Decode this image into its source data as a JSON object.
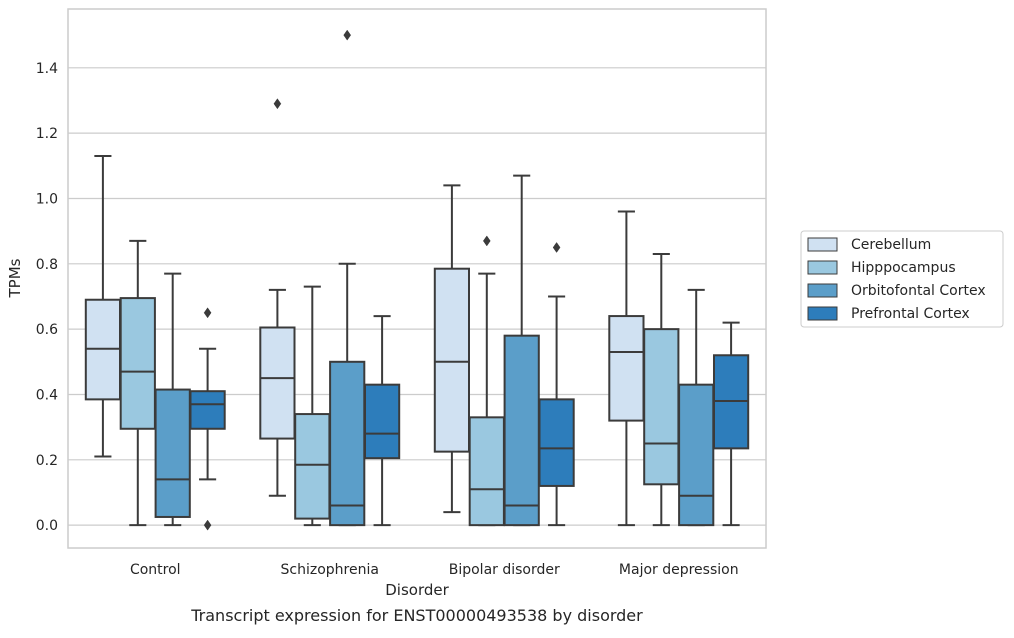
{
  "chart_data": {
    "type": "box",
    "caption": "Transcript expression for ENST00000493538 by disorder",
    "xlabel": "Disorder",
    "ylabel": "TPMs",
    "ylim": [
      -0.07,
      1.58
    ],
    "yticks": [
      0.0,
      0.2,
      0.4,
      0.6,
      0.8,
      1.0,
      1.2,
      1.4
    ],
    "ytick_labels": [
      "0.0",
      "0.2",
      "0.4",
      "0.6",
      "0.8",
      "1.0",
      "1.2",
      "1.4"
    ],
    "grid": true,
    "legend_position": "right",
    "categories": [
      "Control",
      "Schizophrenia",
      "Bipolar disorder",
      "Major depression"
    ],
    "series": [
      {
        "name": "Cerebellum",
        "color": "#d0e1f2",
        "boxes": [
          {
            "whisker_low": 0.21,
            "q1": 0.385,
            "median": 0.54,
            "q3": 0.69,
            "whisker_high": 1.13,
            "outliers": []
          },
          {
            "whisker_low": 0.09,
            "q1": 0.265,
            "median": 0.45,
            "q3": 0.605,
            "whisker_high": 0.72,
            "outliers": [
              1.29
            ]
          },
          {
            "whisker_low": 0.04,
            "q1": 0.225,
            "median": 0.5,
            "q3": 0.785,
            "whisker_high": 1.04,
            "outliers": []
          },
          {
            "whisker_low": 0.0,
            "q1": 0.32,
            "median": 0.53,
            "q3": 0.64,
            "whisker_high": 0.96,
            "outliers": []
          }
        ]
      },
      {
        "name": "Hipppocampus",
        "color": "#9ac8e0",
        "boxes": [
          {
            "whisker_low": 0.0,
            "q1": 0.295,
            "median": 0.47,
            "q3": 0.695,
            "whisker_high": 0.87,
            "outliers": []
          },
          {
            "whisker_low": 0.0,
            "q1": 0.02,
            "median": 0.185,
            "q3": 0.34,
            "whisker_high": 0.73,
            "outliers": []
          },
          {
            "whisker_low": 0.0,
            "q1": 0.0,
            "median": 0.11,
            "q3": 0.33,
            "whisker_high": 0.77,
            "outliers": [
              0.87
            ]
          },
          {
            "whisker_low": 0.0,
            "q1": 0.125,
            "median": 0.25,
            "q3": 0.6,
            "whisker_high": 0.83,
            "outliers": []
          }
        ]
      },
      {
        "name": "Orbitofontal Cortex",
        "color": "#5b9ec9",
        "boxes": [
          {
            "whisker_low": 0.0,
            "q1": 0.025,
            "median": 0.14,
            "q3": 0.415,
            "whisker_high": 0.77,
            "outliers": []
          },
          {
            "whisker_low": 0.0,
            "q1": 0.0,
            "median": 0.06,
            "q3": 0.5,
            "whisker_high": 0.8,
            "outliers": [
              1.5
            ]
          },
          {
            "whisker_low": 0.0,
            "q1": 0.0,
            "median": 0.06,
            "q3": 0.58,
            "whisker_high": 1.07,
            "outliers": []
          },
          {
            "whisker_low": 0.0,
            "q1": 0.0,
            "median": 0.09,
            "q3": 0.43,
            "whisker_high": 0.72,
            "outliers": []
          }
        ]
      },
      {
        "name": "Prefrontal Cortex",
        "color": "#2d7dbb",
        "boxes": [
          {
            "whisker_low": 0.14,
            "q1": 0.295,
            "median": 0.37,
            "q3": 0.41,
            "whisker_high": 0.54,
            "outliers": [
              0.65,
              0.0
            ]
          },
          {
            "whisker_low": 0.0,
            "q1": 0.205,
            "median": 0.28,
            "q3": 0.43,
            "whisker_high": 0.64,
            "outliers": []
          },
          {
            "whisker_low": 0.0,
            "q1": 0.12,
            "median": 0.235,
            "q3": 0.385,
            "whisker_high": 0.7,
            "outliers": [
              0.85
            ]
          },
          {
            "whisker_low": 0.0,
            "q1": 0.235,
            "median": 0.38,
            "q3": 0.52,
            "whisker_high": 0.62,
            "outliers": []
          }
        ]
      }
    ]
  }
}
